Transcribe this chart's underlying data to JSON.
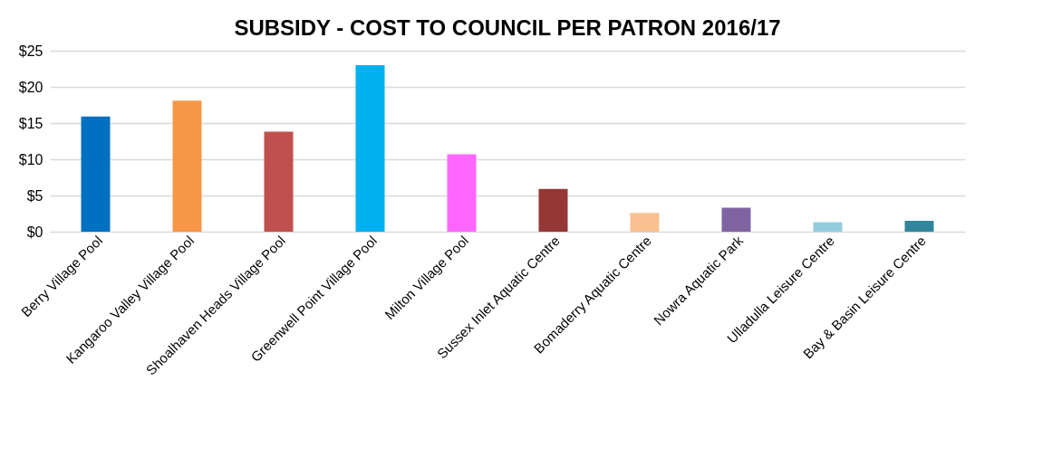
{
  "chart_data": {
    "type": "bar",
    "title": "SUBSIDY - COST TO COUNCIL PER PATRON 2016/17",
    "categories": [
      "Berry Village Pool",
      "Kangaroo Valley Village Pool",
      "Shoalhaven Heads Village Pool",
      "Greenwell Point Village Pool",
      "Milton Village Pool",
      "Sussex Inlet Aquatic Centre",
      "Bomaderry Aquatic Centre",
      "Nowra Aquatic Park",
      "Ulladulla Leisure Centre",
      "Bay & Basin Leisure Centre"
    ],
    "values": [
      15.9,
      18.1,
      13.8,
      23.0,
      10.7,
      5.9,
      2.6,
      3.3,
      1.3,
      1.5
    ],
    "colors": [
      "#0070c0",
      "#f79646",
      "#c0504d",
      "#00b0f0",
      "#ff66ff",
      "#953735",
      "#fac090",
      "#8064a2",
      "#93cddd",
      "#31859c"
    ],
    "ylim": [
      0,
      25
    ],
    "yticks": [
      {
        "value": 0,
        "label": "$0"
      },
      {
        "value": 5,
        "label": "$5"
      },
      {
        "value": 10,
        "label": "$10"
      },
      {
        "value": 15,
        "label": "$15"
      },
      {
        "value": 20,
        "label": "$20"
      },
      {
        "value": 25,
        "label": "$25"
      }
    ],
    "grid": "y",
    "legend": false
  }
}
